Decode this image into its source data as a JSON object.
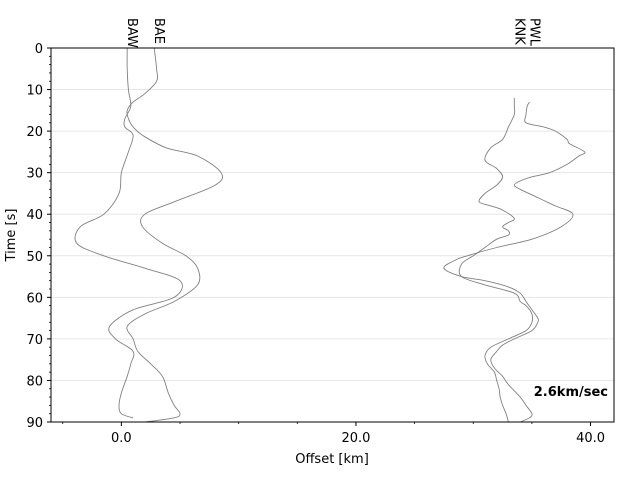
{
  "chart_data": {
    "type": "line",
    "title": "",
    "xlabel": "Offset [km]",
    "ylabel": "Time [s]",
    "xlim": [
      -6,
      42
    ],
    "ylim": [
      0,
      90
    ],
    "y_inverted": true,
    "x_ticks": [
      0,
      20,
      40
    ],
    "x_tick_labels": [
      "0.0",
      "20.0",
      "40.0"
    ],
    "y_ticks": [
      0,
      10,
      20,
      30,
      40,
      50,
      60,
      70,
      80,
      90
    ],
    "y_tick_labels": [
      "0",
      "10",
      "20",
      "30",
      "40",
      "50",
      "60",
      "70",
      "80",
      "90"
    ],
    "grid": "horizontal",
    "trace_color": "#808080",
    "annotation": {
      "text": "2.6km/sec",
      "color": "#0000dd",
      "position": "bottom-right"
    },
    "series": [
      {
        "name": "BAW",
        "points": [
          [
            0.5,
            0
          ],
          [
            0.5,
            5
          ],
          [
            0.6,
            10
          ],
          [
            0.8,
            14
          ],
          [
            0.3,
            17
          ],
          [
            0.3,
            19
          ],
          [
            1.0,
            21
          ],
          [
            0.6,
            25
          ],
          [
            0.0,
            30
          ],
          [
            -0.2,
            35
          ],
          [
            -1.5,
            40
          ],
          [
            -3.5,
            43
          ],
          [
            -3.8,
            47
          ],
          [
            -1.5,
            50
          ],
          [
            2.0,
            53
          ],
          [
            5.0,
            56
          ],
          [
            4.5,
            60
          ],
          [
            1.0,
            63
          ],
          [
            -1.0,
            67
          ],
          [
            -0.5,
            70
          ],
          [
            1.0,
            73
          ],
          [
            0.8,
            76
          ],
          [
            0.5,
            79
          ],
          [
            0.0,
            83
          ],
          [
            -0.2,
            86
          ],
          [
            0.0,
            88
          ],
          [
            1.0,
            89
          ]
        ]
      },
      {
        "name": "BAE",
        "points": [
          [
            2.8,
            0
          ],
          [
            3.0,
            5
          ],
          [
            3.0,
            8
          ],
          [
            2.0,
            11
          ],
          [
            1.0,
            13
          ],
          [
            0.5,
            15
          ],
          [
            0.6,
            17
          ],
          [
            1.0,
            19
          ],
          [
            1.8,
            21
          ],
          [
            3.8,
            24
          ],
          [
            6.5,
            26
          ],
          [
            8.5,
            30
          ],
          [
            8.0,
            33
          ],
          [
            4.5,
            37
          ],
          [
            2.0,
            40
          ],
          [
            1.8,
            43
          ],
          [
            3.5,
            47
          ],
          [
            5.5,
            50
          ],
          [
            6.5,
            53
          ],
          [
            6.5,
            57
          ],
          [
            4.5,
            61
          ],
          [
            2.0,
            64
          ],
          [
            0.5,
            67
          ],
          [
            1.0,
            70
          ],
          [
            1.4,
            73
          ],
          [
            2.5,
            76
          ],
          [
            3.5,
            79
          ],
          [
            4.0,
            83
          ],
          [
            4.5,
            86
          ],
          [
            5.0,
            88
          ],
          [
            4.5,
            89
          ],
          [
            2.0,
            90
          ]
        ]
      },
      {
        "name": "PWL",
        "points": [
          [
            34.8,
            13
          ],
          [
            34.6,
            14
          ],
          [
            34.5,
            16
          ],
          [
            34.5,
            18
          ],
          [
            36.0,
            19
          ],
          [
            37.0,
            20
          ],
          [
            38.0,
            22
          ],
          [
            38.2,
            23
          ],
          [
            39.5,
            25
          ],
          [
            39.0,
            26
          ],
          [
            38.0,
            28
          ],
          [
            36.5,
            30
          ],
          [
            35.0,
            31
          ],
          [
            34.0,
            32
          ],
          [
            33.5,
            33
          ],
          [
            34.0,
            34
          ],
          [
            35.5,
            36
          ],
          [
            37.0,
            38
          ],
          [
            38.5,
            40
          ],
          [
            37.5,
            43
          ],
          [
            35.0,
            46
          ],
          [
            32.0,
            48
          ],
          [
            29.5,
            50
          ],
          [
            28.5,
            51
          ],
          [
            27.5,
            53
          ],
          [
            29.0,
            55
          ],
          [
            31.0,
            56
          ],
          [
            33.0,
            57.5
          ],
          [
            34.0,
            59
          ],
          [
            34.5,
            61
          ],
          [
            35.0,
            63
          ],
          [
            35.5,
            65
          ],
          [
            35.5,
            66
          ],
          [
            35.0,
            68
          ],
          [
            33.5,
            70
          ],
          [
            32.5,
            71.5
          ],
          [
            32.0,
            73
          ],
          [
            31.5,
            75
          ],
          [
            31.8,
            77
          ],
          [
            32.5,
            79
          ],
          [
            33.0,
            81
          ],
          [
            34.0,
            84
          ],
          [
            34.5,
            86
          ],
          [
            35.0,
            88
          ],
          [
            34.8,
            89
          ],
          [
            34.0,
            90
          ]
        ]
      },
      {
        "name": "KNK",
        "points": [
          [
            33.5,
            12
          ],
          [
            33.5,
            14
          ],
          [
            33.5,
            16
          ],
          [
            33.0,
            19
          ],
          [
            32.5,
            22
          ],
          [
            31.5,
            24
          ],
          [
            31.0,
            27
          ],
          [
            32.0,
            29
          ],
          [
            32.5,
            31
          ],
          [
            32.0,
            33
          ],
          [
            31.0,
            35
          ],
          [
            30.5,
            37
          ],
          [
            31.5,
            38
          ],
          [
            32.5,
            39
          ],
          [
            33.5,
            41
          ],
          [
            33.0,
            42
          ],
          [
            32.5,
            43
          ],
          [
            33.0,
            44
          ],
          [
            33.0,
            45
          ],
          [
            32.0,
            46
          ],
          [
            31.0,
            48
          ],
          [
            30.0,
            50
          ],
          [
            29.0,
            52
          ],
          [
            29.0,
            55
          ],
          [
            31.0,
            57
          ],
          [
            33.5,
            59
          ],
          [
            34.0,
            61
          ],
          [
            34.5,
            62
          ],
          [
            35.0,
            64
          ],
          [
            35.0,
            66
          ],
          [
            34.5,
            68
          ],
          [
            33.0,
            70
          ],
          [
            31.5,
            72
          ],
          [
            31.0,
            74
          ],
          [
            31.2,
            76
          ],
          [
            31.8,
            78
          ],
          [
            32.0,
            80
          ],
          [
            32.2,
            82
          ],
          [
            32.3,
            84
          ],
          [
            32.5,
            86
          ],
          [
            32.8,
            88
          ],
          [
            33.0,
            90
          ]
        ]
      }
    ]
  }
}
